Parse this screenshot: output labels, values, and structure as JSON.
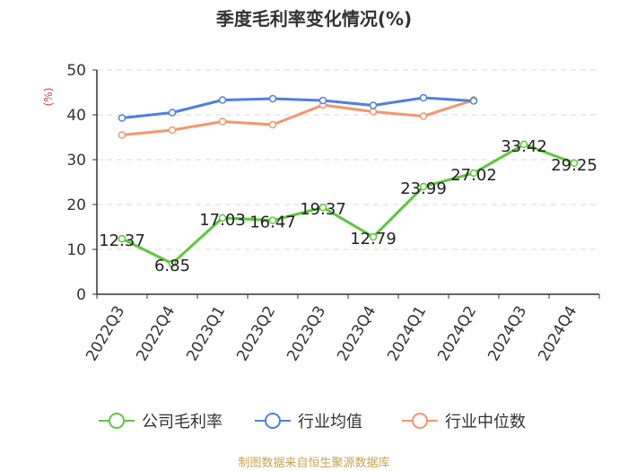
{
  "chart_data": {
    "type": "line",
    "title": "季度毛利率变化情况(%)",
    "ylabel": "(%)",
    "xlabel": "",
    "categories": [
      "2022Q3",
      "2022Q4",
      "2023Q1",
      "2023Q2",
      "2023Q3",
      "2023Q4",
      "2024Q1",
      "2024Q2",
      "2024Q3",
      "2024Q4"
    ],
    "ylim": [
      0,
      50
    ],
    "yticks": [
      0,
      10,
      20,
      30,
      40,
      50
    ],
    "grid": true,
    "legend_position": "bottom",
    "series": [
      {
        "name": "公司毛利率",
        "color": "#5ec73a",
        "show_labels": true,
        "values": [
          12.37,
          6.85,
          17.03,
          16.47,
          19.37,
          12.79,
          23.99,
          27.02,
          33.42,
          29.25
        ],
        "labels": [
          "12.37",
          "6.85",
          "17.03",
          "16.47",
          "19.37",
          "12.79",
          "23.99",
          "27.02",
          "33.42",
          "29.25"
        ]
      },
      {
        "name": "行业均值",
        "color": "#4f7fe0",
        "show_labels": false,
        "values": [
          39.3,
          40.5,
          43.3,
          43.6,
          43.2,
          42.1,
          43.8,
          43.1,
          null,
          null
        ]
      },
      {
        "name": "行业中位数",
        "color": "#f5956c",
        "show_labels": false,
        "values": [
          35.5,
          36.6,
          38.5,
          37.8,
          42.2,
          40.7,
          39.7,
          43.3,
          null,
          null
        ]
      }
    ]
  },
  "source": "制图数据来自恒生聚源数据库"
}
